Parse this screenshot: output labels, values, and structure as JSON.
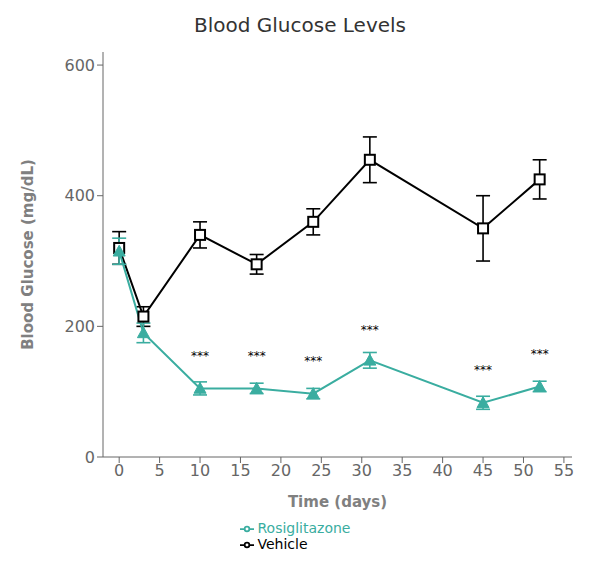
{
  "chart_data": {
    "type": "line",
    "title": "Blood Glucose Levels",
    "x_label": "Time (days)",
    "y_label": "Blood Glucose (mg/dL)",
    "x": [
      0,
      3,
      10,
      17,
      24,
      31,
      45,
      52
    ],
    "xlim": [
      -2,
      56
    ],
    "ylim": [
      0,
      620
    ],
    "xticks": [
      0,
      5,
      10,
      15,
      20,
      25,
      30,
      35,
      40,
      45,
      50,
      55
    ],
    "yticks": [
      0,
      200,
      400,
      600
    ],
    "grid": false,
    "legend": "bottom",
    "series": [
      {
        "name": "Vehicle",
        "color": "#000000",
        "marker": "square",
        "values": [
          320,
          215,
          340,
          295,
          360,
          455,
          350,
          425
        ],
        "errors": [
          25,
          15,
          20,
          15,
          20,
          35,
          50,
          30
        ]
      },
      {
        "name": "Rosiglitazone",
        "color": "#3aada0",
        "marker": "triangle",
        "values": [
          315,
          190,
          105,
          105,
          97,
          148,
          83,
          108
        ],
        "errors": [
          20,
          15,
          10,
          8,
          8,
          12,
          10,
          8
        ]
      }
    ],
    "annotations": [
      {
        "text": "***",
        "x": 10,
        "y": 155
      },
      {
        "text": "***",
        "x": 17,
        "y": 155
      },
      {
        "text": "***",
        "x": 24,
        "y": 148
      },
      {
        "text": "***",
        "x": 31,
        "y": 195
      },
      {
        "text": "***",
        "x": 45,
        "y": 133
      },
      {
        "text": "***",
        "x": 52,
        "y": 158
      }
    ]
  }
}
